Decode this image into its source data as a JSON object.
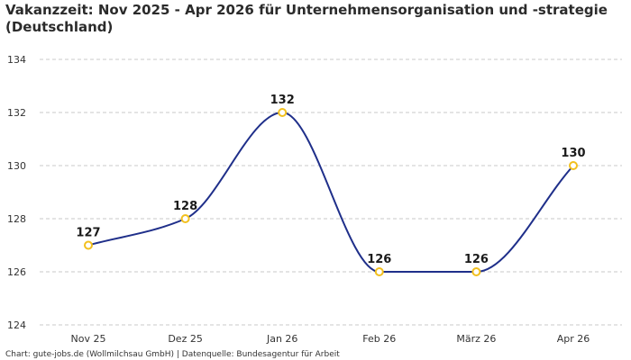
{
  "chart_data": {
    "type": "line",
    "title_line1": "Vakanzzeit: Nov 2025 - Apr 2026 für Unternehmensorganisation und -strategie",
    "title_line2": "(Deutschland)",
    "categories": [
      "Nov 25",
      "Dez 25",
      "Jan 26",
      "Feb 26",
      "März 26",
      "Apr 26"
    ],
    "series": [
      {
        "values": [
          127,
          128,
          132,
          126,
          126,
          130
        ]
      }
    ],
    "ylim": [
      124,
      134
    ],
    "yticks": [
      124,
      126,
      128,
      130,
      132,
      134
    ],
    "grid": true,
    "line_color": "#1f2f8a",
    "marker_color": "#f2c01e",
    "source": "Chart: gute-jobs.de (Wollmilchsau GmbH) | Datenquelle: Bundesagentur für Arbeit"
  }
}
